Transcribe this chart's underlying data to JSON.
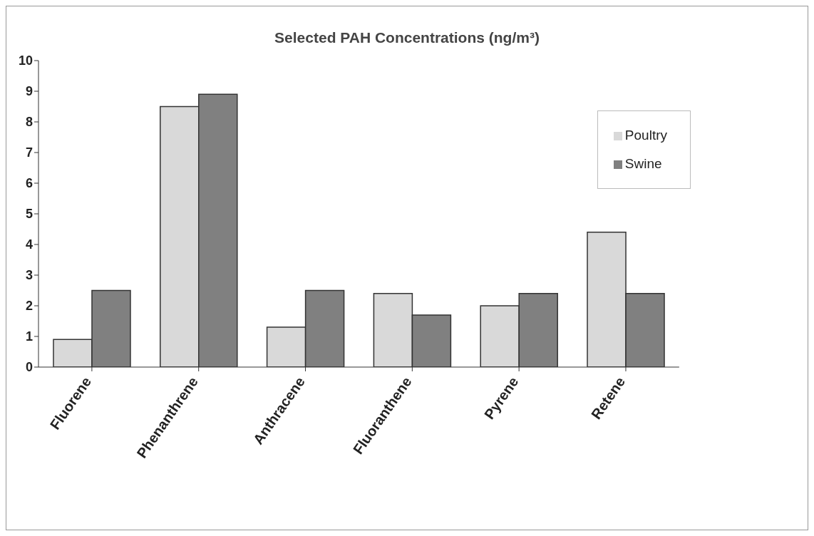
{
  "chart_data": {
    "type": "bar",
    "title": "Selected PAH Concentrations (ng/m³)",
    "categories": [
      "Fluorene",
      "Phenanthrene",
      "Anthracene",
      "Fluoranthene",
      "Pyrene",
      "Retene"
    ],
    "series": [
      {
        "name": "Poultry",
        "color": "#d9d9d9",
        "values": [
          0.9,
          8.5,
          1.3,
          2.4,
          2.0,
          4.4
        ]
      },
      {
        "name": "Swine",
        "color": "#808080",
        "values": [
          2.5,
          8.9,
          2.5,
          1.7,
          2.4,
          2.4
        ]
      }
    ],
    "ylim": [
      0,
      10
    ],
    "yticks": [
      0,
      1,
      2,
      3,
      4,
      5,
      6,
      7,
      8,
      9,
      10
    ],
    "grid": false,
    "legend": "top right"
  }
}
